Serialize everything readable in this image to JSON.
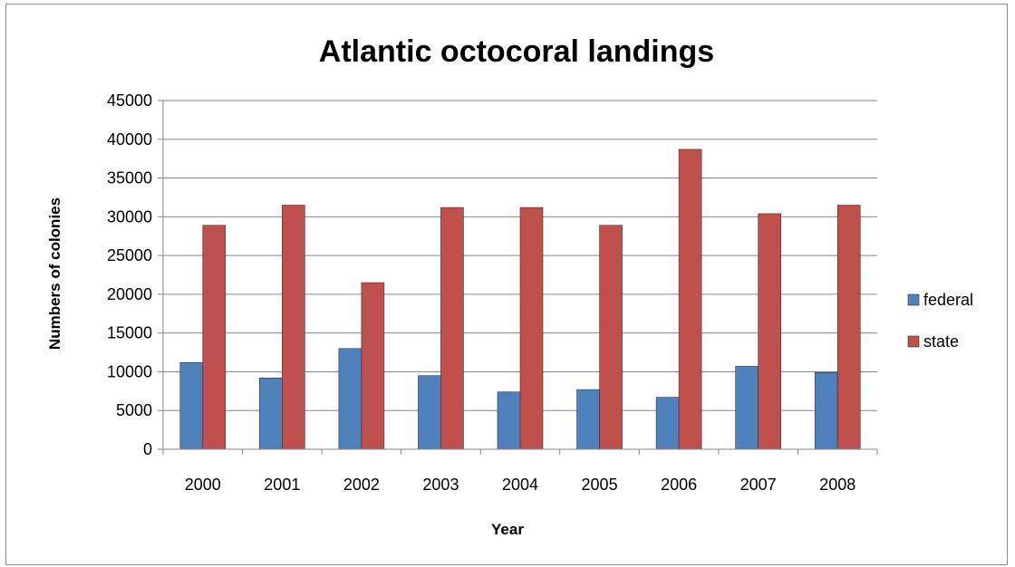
{
  "chart_data": {
    "type": "bar",
    "title": "Atlantic octocoral landings",
    "xlabel": "Year",
    "ylabel": "Numbers of colonies",
    "categories": [
      "2000",
      "2001",
      "2002",
      "2003",
      "2004",
      "2005",
      "2006",
      "2007",
      "2008"
    ],
    "series": [
      {
        "name": "federal",
        "color": "#4f81bd",
        "values": [
          11200,
          9200,
          13000,
          9500,
          7400,
          7700,
          6700,
          10700,
          9900
        ]
      },
      {
        "name": "state",
        "color": "#c0504d",
        "values": [
          28900,
          31500,
          21500,
          31200,
          31200,
          28900,
          38700,
          30400,
          31500
        ]
      }
    ],
    "ylim": [
      0,
      45000
    ],
    "yticks": [
      "0",
      "5000",
      "10000",
      "15000",
      "20000",
      "25000",
      "30000",
      "35000",
      "40000",
      "45000"
    ],
    "grid": true,
    "legend_position": "right"
  }
}
